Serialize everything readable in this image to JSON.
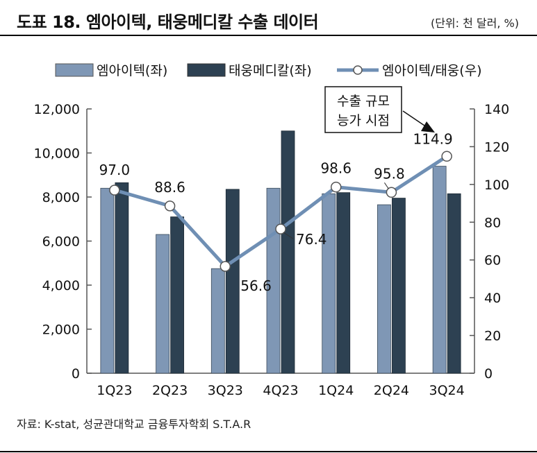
{
  "header": {
    "title": "도표 18. 엠아이텍, 태웅메디칼 수출 데이터",
    "unit": "(단위: 천 달러, %)"
  },
  "source": "자료: K-stat, 성균관대학교 금융투자학회 S.T.A.R",
  "annotation": {
    "lines": [
      "수출 규모",
      "능가 시점"
    ]
  },
  "colors": {
    "series1": "#7f97b5",
    "series2": "#2d4152",
    "line": "#6f8fb4",
    "axis": "#555555"
  },
  "chart_data": {
    "type": "bar",
    "categories": [
      "1Q23",
      "2Q23",
      "3Q23",
      "4Q23",
      "1Q24",
      "2Q24",
      "3Q24"
    ],
    "series": [
      {
        "name": "엠아이텍(좌)",
        "type": "bar",
        "axis": "left",
        "values": [
          8400,
          6300,
          4750,
          8400,
          8150,
          7650,
          9400
        ]
      },
      {
        "name": "태웅메디칼(좌)",
        "type": "bar",
        "axis": "left",
        "values": [
          8650,
          7100,
          8350,
          11000,
          8200,
          7950,
          8150
        ]
      },
      {
        "name": "엠아이텍/태웅(우)",
        "type": "line",
        "axis": "right",
        "values": [
          97.0,
          88.6,
          56.6,
          76.4,
          98.6,
          95.8,
          114.9
        ],
        "labels": [
          "97.0",
          "88.6",
          "56.6",
          "76.4",
          "98.6",
          "95.8",
          "114.9"
        ]
      }
    ],
    "y_left": {
      "min": 0,
      "max": 12000,
      "ticks": [
        "0",
        "2,000",
        "4,000",
        "6,000",
        "8,000",
        "10,000",
        "12,000"
      ]
    },
    "y_right": {
      "min": 0,
      "max": 140,
      "ticks": [
        "0",
        "20",
        "40",
        "60",
        "80",
        "100",
        "120",
        "140"
      ]
    },
    "legend": "top",
    "grid": false
  }
}
